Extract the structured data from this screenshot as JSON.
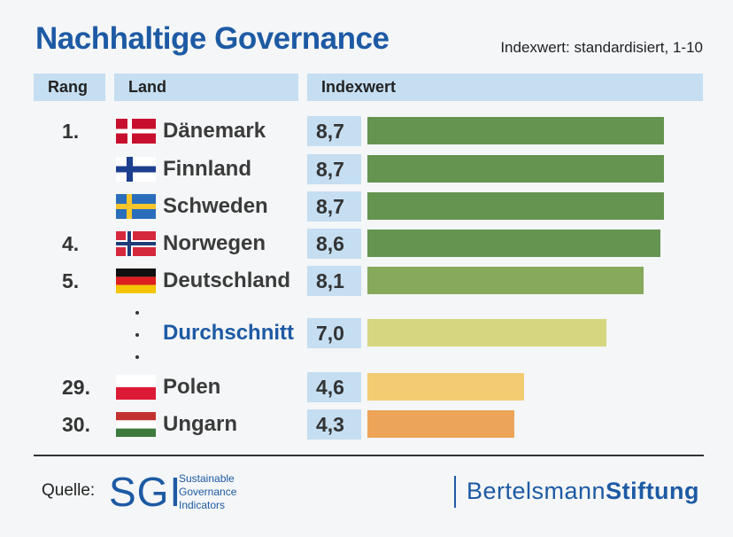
{
  "title": "Nachhaltige Governance",
  "subtitle": "Indexwert: standardisiert, 1-10",
  "headers": {
    "rang": "Rang",
    "land": "Land",
    "index": "Indexwert"
  },
  "chart_data": {
    "type": "bar",
    "orientation": "horizontal",
    "title": "Nachhaltige Governance",
    "subtitle": "Indexwert: standardisiert, 1-10",
    "xlim": [
      1,
      10
    ],
    "rows": [
      {
        "rank": "1.",
        "country": "Dänemark",
        "value": 8.7,
        "label": "8,7",
        "flag": "denmark",
        "color": "#659450"
      },
      {
        "rank": "",
        "country": "Finnland",
        "value": 8.7,
        "label": "8,7",
        "flag": "finland",
        "color": "#659450"
      },
      {
        "rank": "",
        "country": "Schweden",
        "value": 8.7,
        "label": "8,7",
        "flag": "sweden",
        "color": "#659450"
      },
      {
        "rank": "4.",
        "country": "Norwegen",
        "value": 8.6,
        "label": "8,6",
        "flag": "norway",
        "color": "#659450"
      },
      {
        "rank": "5.",
        "country": "Deutschland",
        "value": 8.1,
        "label": "8,1",
        "flag": "germany",
        "color": "#86a95c"
      },
      {
        "rank": "",
        "country": "Durchschnitt",
        "value": 7.0,
        "label": "7,0",
        "flag": "",
        "color": "#d7d680",
        "average": true
      },
      {
        "rank": "29.",
        "country": "Polen",
        "value": 4.6,
        "label": "4,6",
        "flag": "poland",
        "color": "#f3cb73"
      },
      {
        "rank": "30.",
        "country": "Ungarn",
        "value": 4.3,
        "label": "4,3",
        "flag": "hungary",
        "color": "#eca458"
      }
    ]
  },
  "footer": {
    "quelle": "Quelle:",
    "sgi_logo": "SGI",
    "sgi_line1": "Sustainable",
    "sgi_line2": "Governance",
    "sgi_line3": "Indicators",
    "bertelsmann": "Bertelsmann",
    "stiftung": "Stiftung"
  }
}
